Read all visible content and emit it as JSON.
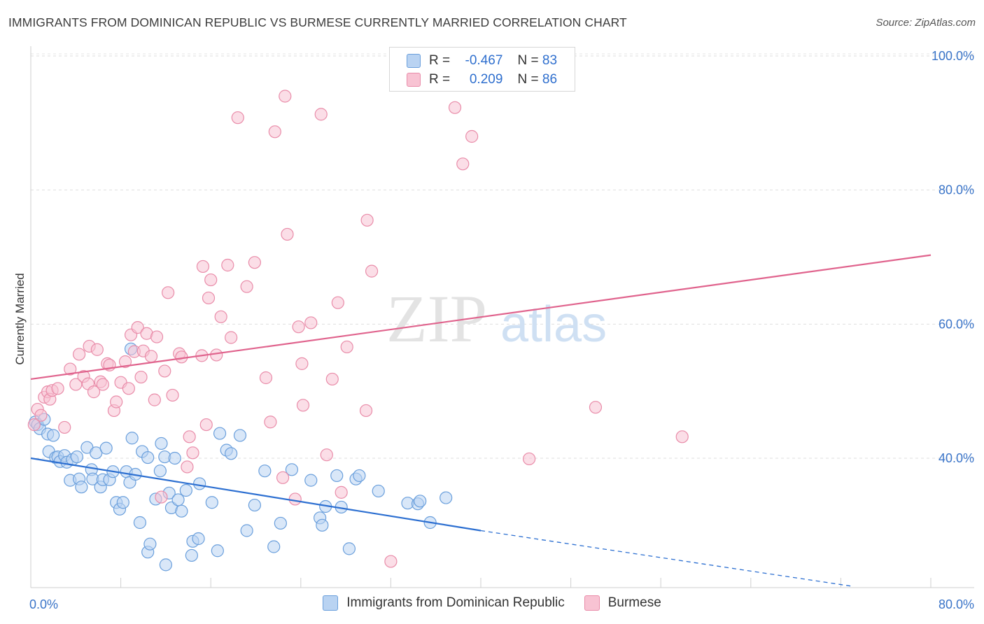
{
  "title": "IMMIGRANTS FROM DOMINICAN REPUBLIC VS BURMESE CURRENTLY MARRIED CORRELATION CHART",
  "source": "Source: ZipAtlas.com",
  "watermark": {
    "zip": "ZIP",
    "atlas": "atlas"
  },
  "legend_top": {
    "rows": [
      {
        "r_label": "R =",
        "r_value": "-0.467",
        "n_label": "N =",
        "n_value": "83"
      },
      {
        "r_label": "R =",
        "r_value": "0.209",
        "n_label": "N =",
        "n_value": "86"
      }
    ]
  },
  "colors": {
    "blue_fill": "#b9d3f2",
    "blue_stroke": "#6a9fdc",
    "blue_line": "#2c6fd1",
    "pink_fill": "#f8c3d3",
    "pink_stroke": "#e98ca9",
    "pink_line": "#e0638d",
    "tick_text": "#3a74c8"
  },
  "chart_data": {
    "type": "scatter",
    "title": "IMMIGRANTS FROM DOMINICAN REPUBLIC VS BURMESE CURRENTLY MARRIED CORRELATION CHART",
    "xlabel": "",
    "ylabel": "Currently Married",
    "xlim": [
      0,
      80
    ],
    "ylim": [
      20,
      102
    ],
    "x_ticks": [
      "0.0%",
      "80.0%"
    ],
    "y_ticks": [
      "40.0%",
      "60.0%",
      "80.0%",
      "100.0%"
    ],
    "y_tick_values": [
      40,
      60,
      80,
      100
    ],
    "grid": true,
    "legend_position": "bottom",
    "series": [
      {
        "name": "Immigrants from Dominican Republic",
        "color": "#6a9fdc",
        "trend": {
          "x": [
            0,
            40
          ],
          "y": [
            40.0,
            29.2
          ],
          "dashed_to": {
            "x": [
              40,
              73
            ],
            "y": [
              29.2,
              20.9
            ]
          }
        },
        "points": [
          [
            0.4,
            45.4
          ],
          [
            0.6,
            45.0
          ],
          [
            0.8,
            44.4
          ],
          [
            1.2,
            45.8
          ],
          [
            1.5,
            43.6
          ],
          [
            1.6,
            41.0
          ],
          [
            2.0,
            43.4
          ],
          [
            2.2,
            40.1
          ],
          [
            2.4,
            40.2
          ],
          [
            2.6,
            39.5
          ],
          [
            3.0,
            40.4
          ],
          [
            3.2,
            39.4
          ],
          [
            3.5,
            36.7
          ],
          [
            3.7,
            39.8
          ],
          [
            4.1,
            40.2
          ],
          [
            4.3,
            36.9
          ],
          [
            4.5,
            35.7
          ],
          [
            5.0,
            41.6
          ],
          [
            5.4,
            38.3
          ],
          [
            5.5,
            36.9
          ],
          [
            5.8,
            40.8
          ],
          [
            6.2,
            35.7
          ],
          [
            6.4,
            36.8
          ],
          [
            6.7,
            41.5
          ],
          [
            7.0,
            36.8
          ],
          [
            7.3,
            38.0
          ],
          [
            7.6,
            33.4
          ],
          [
            7.9,
            32.4
          ],
          [
            8.2,
            33.4
          ],
          [
            8.5,
            38.0
          ],
          [
            8.8,
            36.4
          ],
          [
            9.0,
            43.0
          ],
          [
            8.9,
            56.3
          ],
          [
            9.3,
            37.6
          ],
          [
            9.7,
            30.4
          ],
          [
            9.9,
            41.0
          ],
          [
            10.4,
            26.0
          ],
          [
            10.6,
            27.2
          ],
          [
            10.4,
            40.1
          ],
          [
            11.1,
            33.9
          ],
          [
            11.5,
            38.1
          ],
          [
            11.6,
            42.2
          ],
          [
            11.9,
            40.2
          ],
          [
            12.0,
            24.1
          ],
          [
            12.3,
            34.8
          ],
          [
            12.5,
            32.6
          ],
          [
            12.8,
            40.0
          ],
          [
            13.1,
            33.8
          ],
          [
            13.4,
            32.1
          ],
          [
            13.8,
            35.2
          ],
          [
            14.3,
            25.5
          ],
          [
            14.4,
            27.6
          ],
          [
            14.9,
            28.0
          ],
          [
            15.0,
            36.2
          ],
          [
            16.1,
            33.4
          ],
          [
            16.6,
            26.2
          ],
          [
            16.8,
            43.7
          ],
          [
            17.4,
            41.2
          ],
          [
            17.8,
            40.7
          ],
          [
            18.6,
            43.4
          ],
          [
            19.2,
            29.2
          ],
          [
            19.9,
            33.0
          ],
          [
            20.8,
            38.1
          ],
          [
            21.6,
            26.8
          ],
          [
            22.2,
            30.3
          ],
          [
            23.2,
            38.3
          ],
          [
            24.9,
            36.7
          ],
          [
            25.7,
            31.1
          ],
          [
            25.9,
            30.0
          ],
          [
            26.2,
            32.8
          ],
          [
            27.2,
            37.4
          ],
          [
            27.6,
            32.7
          ],
          [
            28.3,
            26.5
          ],
          [
            28.9,
            36.9
          ],
          [
            29.2,
            37.4
          ],
          [
            30.9,
            35.1
          ],
          [
            33.5,
            33.3
          ],
          [
            34.4,
            33.2
          ],
          [
            34.6,
            33.6
          ],
          [
            35.5,
            30.4
          ],
          [
            36.9,
            34.1
          ]
        ]
      },
      {
        "name": "Burmese",
        "color": "#e98ca9",
        "trend": {
          "x": [
            0,
            80
          ],
          "y": [
            51.8,
            70.3
          ]
        },
        "points": [
          [
            0.3,
            45.0
          ],
          [
            0.6,
            47.3
          ],
          [
            0.9,
            46.4
          ],
          [
            1.2,
            49.1
          ],
          [
            1.5,
            49.9
          ],
          [
            1.7,
            48.8
          ],
          [
            1.9,
            50.1
          ],
          [
            2.4,
            50.4
          ],
          [
            3.0,
            44.6
          ],
          [
            3.5,
            53.3
          ],
          [
            4.0,
            51.0
          ],
          [
            4.3,
            55.5
          ],
          [
            4.7,
            52.2
          ],
          [
            5.1,
            51.1
          ],
          [
            5.2,
            56.7
          ],
          [
            5.6,
            49.9
          ],
          [
            5.9,
            56.2
          ],
          [
            6.2,
            51.4
          ],
          [
            6.4,
            51.0
          ],
          [
            6.8,
            54.1
          ],
          [
            7.0,
            53.9
          ],
          [
            7.4,
            47.1
          ],
          [
            7.6,
            48.4
          ],
          [
            8.0,
            51.3
          ],
          [
            8.4,
            54.4
          ],
          [
            8.7,
            50.4
          ],
          [
            8.9,
            58.4
          ],
          [
            9.2,
            55.9
          ],
          [
            9.5,
            59.5
          ],
          [
            9.8,
            52.1
          ],
          [
            10.0,
            56.0
          ],
          [
            10.3,
            58.6
          ],
          [
            10.7,
            55.2
          ],
          [
            11.0,
            48.7
          ],
          [
            11.2,
            58.1
          ],
          [
            11.6,
            34.2
          ],
          [
            11.9,
            53.0
          ],
          [
            12.2,
            64.7
          ],
          [
            12.6,
            49.4
          ],
          [
            13.2,
            55.6
          ],
          [
            13.4,
            55.1
          ],
          [
            13.9,
            38.7
          ],
          [
            14.1,
            43.2
          ],
          [
            14.4,
            40.8
          ],
          [
            15.2,
            55.3
          ],
          [
            15.3,
            68.6
          ],
          [
            15.6,
            45.0
          ],
          [
            15.8,
            63.9
          ],
          [
            16.0,
            66.6
          ],
          [
            16.5,
            55.4
          ],
          [
            16.9,
            61.1
          ],
          [
            17.5,
            68.8
          ],
          [
            17.8,
            58.0
          ],
          [
            18.4,
            90.8
          ],
          [
            19.2,
            65.6
          ],
          [
            19.9,
            69.2
          ],
          [
            20.9,
            52.0
          ],
          [
            21.3,
            45.4
          ],
          [
            21.7,
            88.7
          ],
          [
            22.4,
            37.1
          ],
          [
            22.6,
            94.0
          ],
          [
            22.8,
            73.4
          ],
          [
            23.5,
            33.9
          ],
          [
            23.8,
            59.6
          ],
          [
            24.1,
            54.1
          ],
          [
            24.2,
            47.9
          ],
          [
            24.9,
            60.2
          ],
          [
            25.8,
            91.3
          ],
          [
            26.3,
            40.5
          ],
          [
            26.8,
            51.8
          ],
          [
            27.3,
            63.2
          ],
          [
            27.6,
            34.9
          ],
          [
            28.1,
            56.6
          ],
          [
            29.8,
            47.1
          ],
          [
            29.9,
            75.5
          ],
          [
            30.3,
            67.9
          ],
          [
            32.0,
            24.6
          ],
          [
            37.7,
            92.3
          ],
          [
            38.4,
            83.9
          ],
          [
            39.2,
            88.0
          ],
          [
            44.3,
            39.9
          ],
          [
            50.2,
            47.6
          ],
          [
            57.9,
            43.2
          ]
        ]
      }
    ]
  },
  "bottom_legend": [
    {
      "label": "Immigrants from Dominican Republic"
    },
    {
      "label": "Burmese"
    }
  ]
}
